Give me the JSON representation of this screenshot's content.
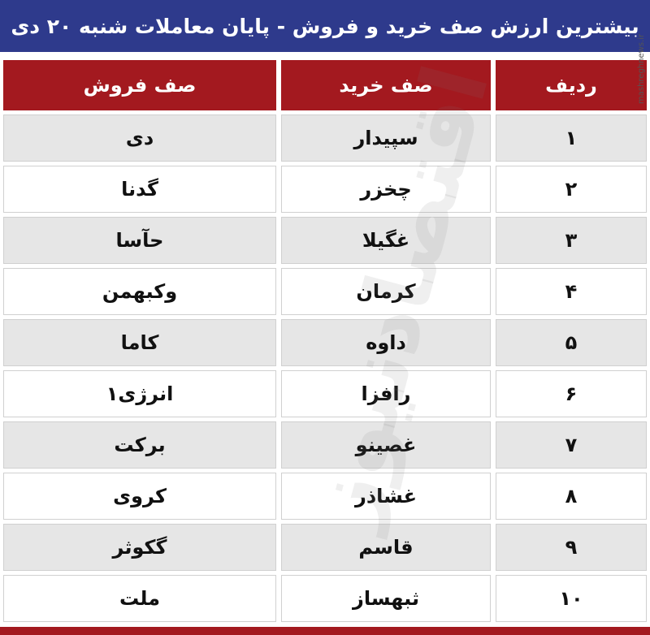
{
  "header": {
    "title": "بیشترین ارزش صف خرید و فروش - پایان معاملات شنبه ۲۰ دی",
    "watermark": "mashreghnews.ir",
    "logo_watermark": "اقتصادنیوز"
  },
  "table": {
    "columns": [
      "ردیف",
      "صف خرید",
      "صف فروش"
    ],
    "rows": [
      [
        "۱",
        "سپیدار",
        "دی"
      ],
      [
        "۲",
        "چخزر",
        "گدنا"
      ],
      [
        "۳",
        "غگیلا",
        "حآسا"
      ],
      [
        "۴",
        "کرمان",
        "وکبهمن"
      ],
      [
        "۵",
        "داوه",
        "کاما"
      ],
      [
        "۶",
        "رافزا",
        "انرژی۱"
      ],
      [
        "۷",
        "غصینو",
        "برکت"
      ],
      [
        "۸",
        "غشاذر",
        "کروی"
      ],
      [
        "۹",
        "قاسم",
        "گکوثر"
      ],
      [
        "۱۰",
        "ثبهساز",
        "ملت"
      ]
    ]
  }
}
